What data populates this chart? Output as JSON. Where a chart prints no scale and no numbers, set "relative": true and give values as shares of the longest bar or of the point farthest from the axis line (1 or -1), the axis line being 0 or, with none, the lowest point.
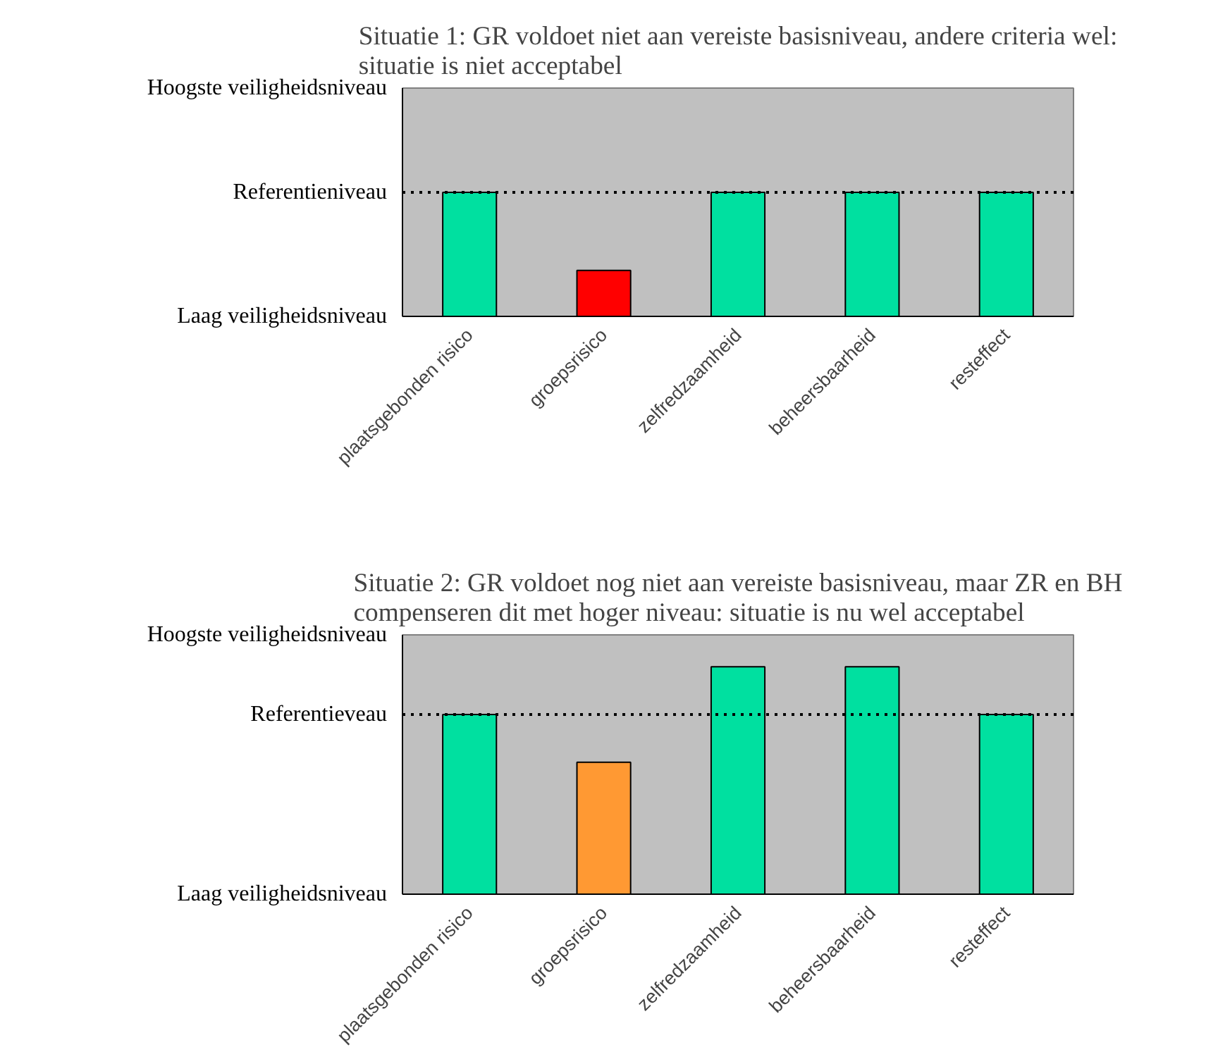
{
  "chart_data": [
    {
      "type": "bar",
      "title": "Situatie 1: GR voldoet niet aan vereiste basisniveau, andere criteria wel:\nsituatie is niet acceptabel",
      "categories": [
        "plaatsgebonden risico",
        "groepsrisico",
        "zelfredzaamheid",
        "beheersbaarheid",
        "resteffect"
      ],
      "values": [
        1,
        0.37,
        1,
        1,
        1
      ],
      "colors": [
        "#00e0a0",
        "#ff0000",
        "#00e0a0",
        "#00e0a0",
        "#00e0a0"
      ],
      "relative": true,
      "annotations": [
        "Hoogste veiligheidsniveau",
        "Laag veiligheidsniveau"
      ],
      "ref_lines": [
        {
          "axis": "y",
          "value": 1,
          "label": "Referentieniveau",
          "color": "#000000",
          "line_style": "dotted"
        }
      ]
    },
    {
      "type": "bar",
      "title": "Situatie 2: GR voldoet nog niet aan vereiste basisniveau, maar ZR en BH\ncompenseren dit met hoger niveau: situatie is nu wel acceptabel",
      "categories": [
        "plaatsgebonden risico",
        "groepsrisico",
        "zelfredzaamheid",
        "beheersbaarheid",
        "resteffect"
      ],
      "values": [
        0.79,
        0.58,
        1,
        1,
        0.79
      ],
      "colors": [
        "#00e0a0",
        "#ff9933",
        "#00e0a0",
        "#00e0a0",
        "#00e0a0"
      ],
      "relative": true,
      "annotations": [
        "Hoogste veiligheidsniveau",
        "Laag veiligheidsniveau"
      ],
      "ref_lines": [
        {
          "axis": "y",
          "value": 0.79,
          "label": "Referentieveau",
          "color": "#000000",
          "line_style": "dotted"
        }
      ]
    }
  ]
}
